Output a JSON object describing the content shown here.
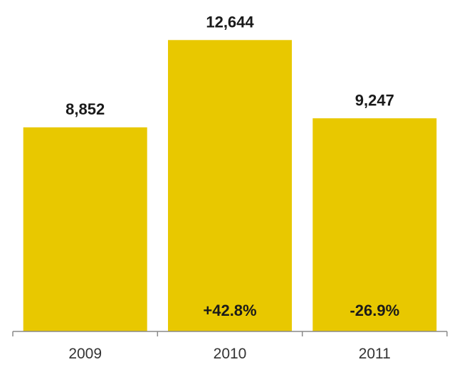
{
  "chart_data": {
    "type": "bar",
    "categories": [
      "2009",
      "2010",
      "2011"
    ],
    "values": [
      8852,
      12644,
      9247
    ],
    "value_labels": [
      "8,852",
      "12,644",
      "9,247"
    ],
    "change_labels": [
      "",
      "+42.8%",
      "-26.9%"
    ],
    "title": "",
    "xlabel": "",
    "ylabel": "",
    "ylim": [
      0,
      13300
    ],
    "grid": false,
    "legend": "none",
    "bar_color": "#e8c800"
  }
}
